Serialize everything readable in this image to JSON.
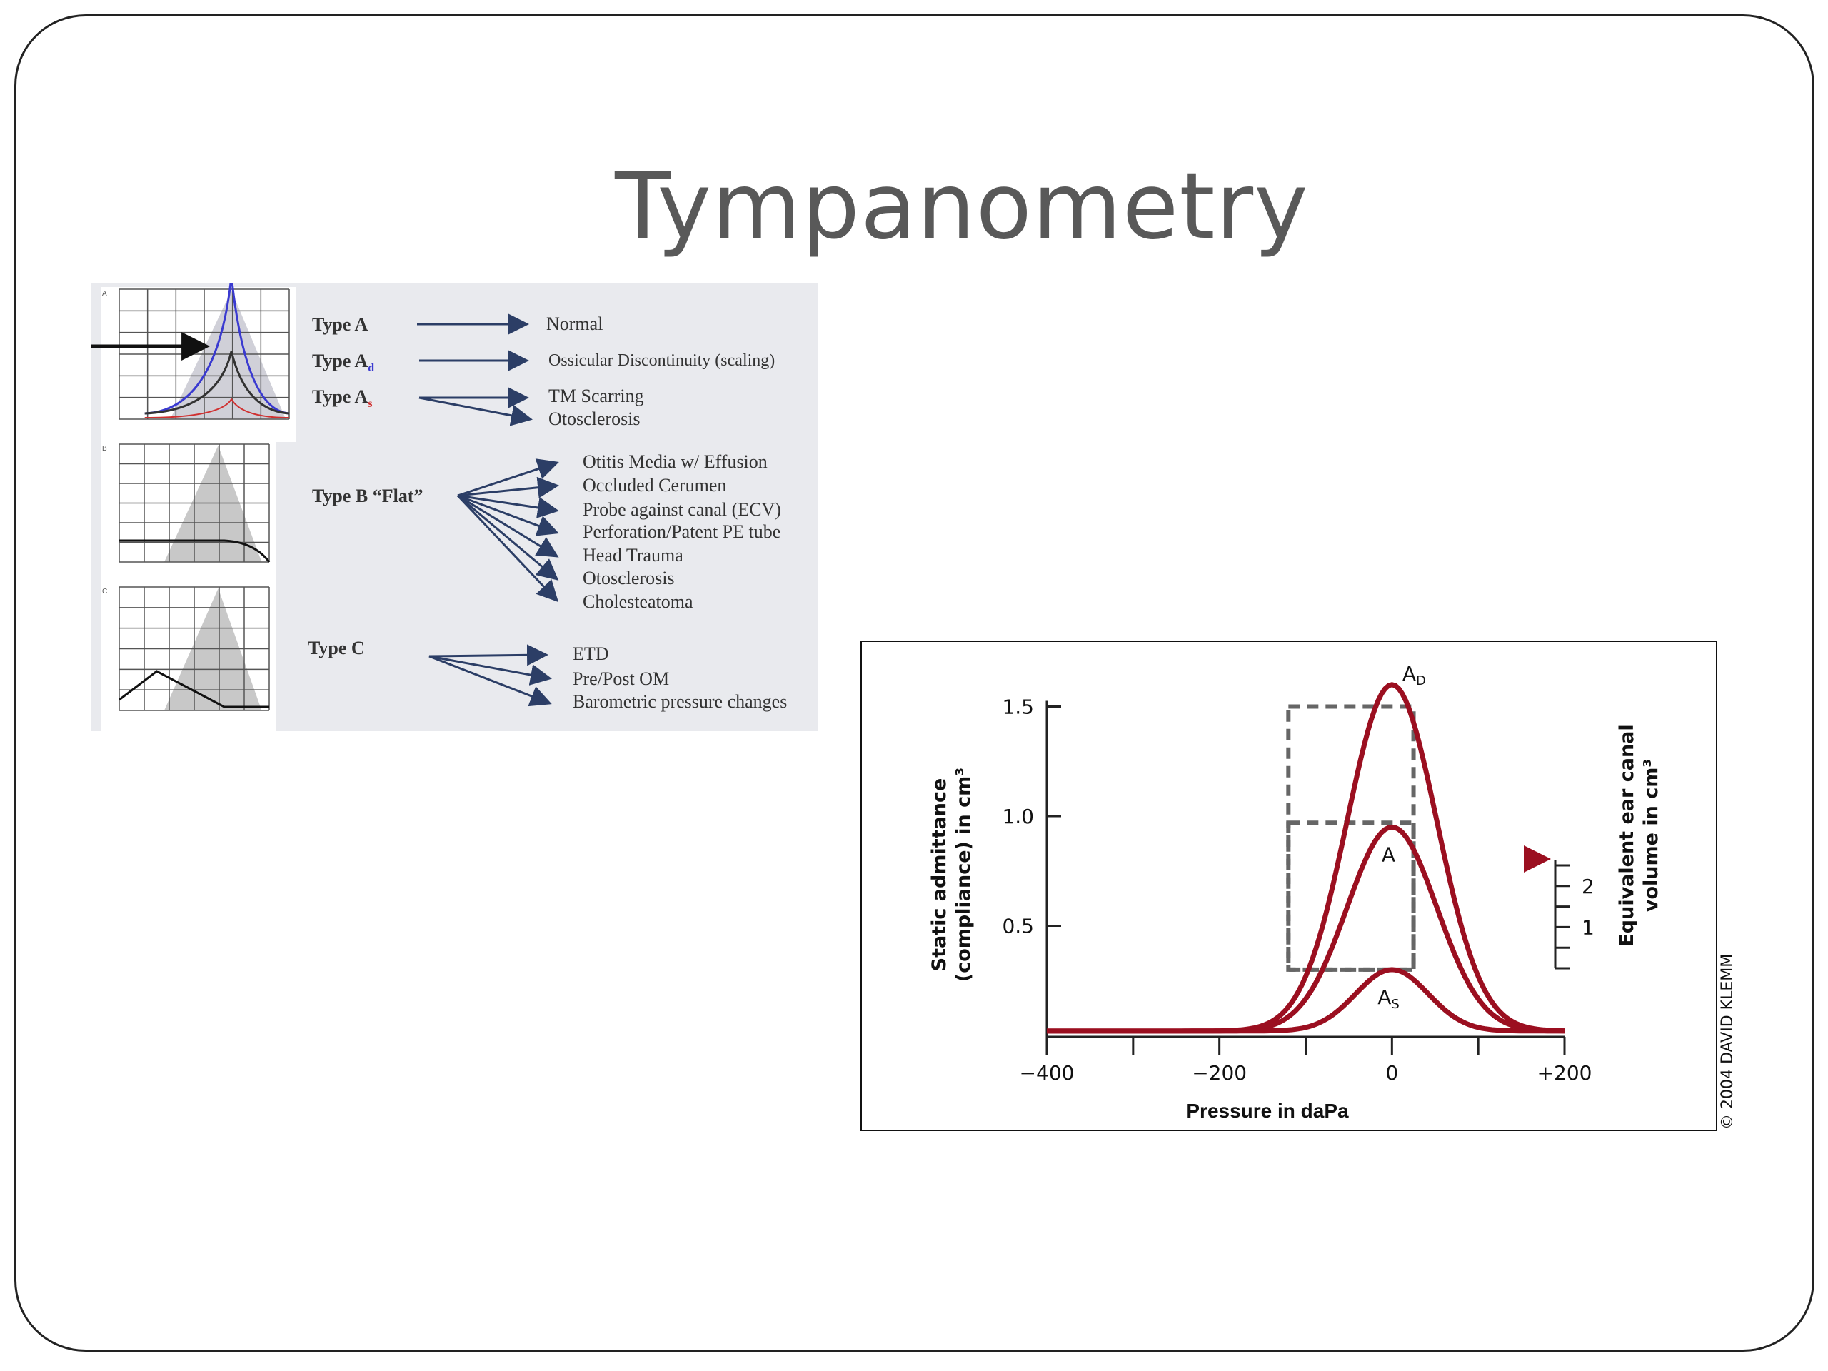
{
  "slide": {
    "title": "Tympanometry"
  },
  "left_figure": {
    "panel_letters": [
      "A",
      "B",
      "C"
    ],
    "types": [
      {
        "label": "Type A",
        "outcomes": [
          "Normal"
        ]
      },
      {
        "label": "Type A",
        "sub": "d",
        "outcomes": [
          "Ossicular Discontinuity (scaling)"
        ]
      },
      {
        "label": "Type A",
        "sub": "s",
        "outcomes": [
          "TM Scarring",
          "Otosclerosis"
        ]
      },
      {
        "label": "Type B “Flat”",
        "outcomes": [
          "Otitis Media w/ Effusion",
          "Occluded Cerumen",
          "Probe against canal (ECV)",
          "Perforation/Patent PE tube",
          "Head Trauma",
          "Otosclerosis",
          "Cholesteatoma"
        ]
      },
      {
        "label": "Type C",
        "outcomes": [
          "ETD",
          "Pre/Post OM",
          "Barometric pressure changes"
        ]
      }
    ],
    "colors": {
      "ad": "#3a3ad0",
      "as": "#d03030",
      "arrow": "#2c3e66"
    }
  },
  "chart_data": {
    "type": "line",
    "xlabel": "Pressure in daPa",
    "ylabel_line1": "Static admittance",
    "ylabel_line2": "(compliance) in cm³",
    "y2label_line1": "Equivalent ear canal",
    "y2label_line2": "volume in cm³",
    "xlim": [
      -400,
      200
    ],
    "ylim": [
      0,
      1.5
    ],
    "y2lim": [
      0,
      2.5
    ],
    "xticks": [
      -400,
      -300,
      -200,
      -100,
      0,
      100,
      200
    ],
    "xtick_labels": [
      "−400",
      "",
      "−200",
      "",
      "0",
      "",
      "+200"
    ],
    "yticks": [
      0.5,
      1.0,
      1.5
    ],
    "ytick_labels": [
      "0.5",
      "1.0",
      "1.5"
    ],
    "y2ticks": [
      0,
      0.5,
      1,
      1.5,
      2,
      2.5
    ],
    "y2tick_labels": [
      "",
      "",
      "1",
      "",
      "2",
      ""
    ],
    "series": [
      {
        "name": "A",
        "sub": "D",
        "peak_x": 0,
        "peak_y": 1.58,
        "baseline": 0.02
      },
      {
        "name": "A",
        "sub": "",
        "peak_x": 0,
        "peak_y": 0.93,
        "baseline": 0.02
      },
      {
        "name": "A",
        "sub": "S",
        "peak_x": 0,
        "peak_y": 0.28,
        "baseline": 0.02
      }
    ],
    "normal_ranges": [
      {
        "x": [
          -120,
          25
        ],
        "y": [
          0.3,
          1.5
        ]
      },
      {
        "x": [
          -120,
          25
        ],
        "y": [
          0.3,
          0.97
        ]
      }
    ],
    "ecv_marker": 1,
    "credit": "© 2004  DAVID KLEMM",
    "color": "#9b0f20"
  }
}
